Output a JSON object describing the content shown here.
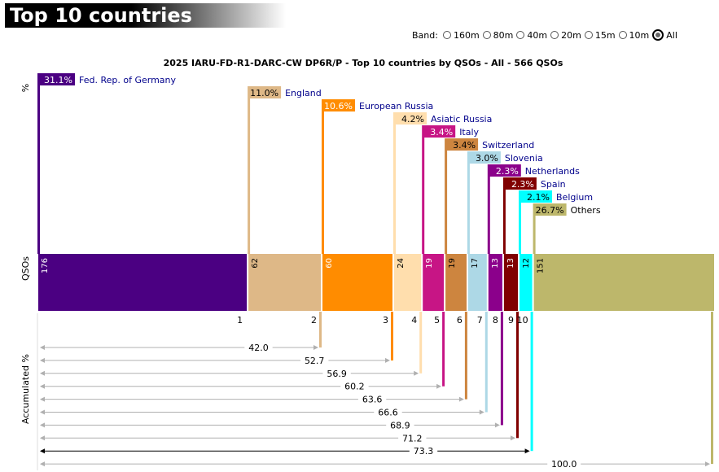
{
  "page": {
    "title": "Top 10 countries"
  },
  "band": {
    "label": "Band:",
    "options": [
      "160m",
      "80m",
      "40m",
      "20m",
      "15m",
      "10m",
      "All"
    ],
    "selected": "All"
  },
  "colors": {
    "others": "#bdb76b",
    "labelText": "#00008b",
    "arrowLight": "#b0b0b0"
  },
  "chart_data": {
    "type": "bar",
    "title": "2025 IARU-FD-R1-DARC-CW DP6R/P - Top 10 countries by QSOs - All - 566 QSOs",
    "total_qsos": 566,
    "axis_labels": {
      "percent": "%",
      "qsos": "QSOs",
      "accumulated": "Accumulated %"
    },
    "categories": [
      "Fed. Rep. of Germany",
      "England",
      "European Russia",
      "Asiatic Russia",
      "Italy",
      "Switzerland",
      "Slovenia",
      "Netherlands",
      "Spain",
      "Belgium",
      "Others"
    ],
    "ranks": [
      "1",
      "2",
      "3",
      "4",
      "5",
      "6",
      "7",
      "8",
      "9",
      "10"
    ],
    "qsos": [
      176,
      62,
      60,
      24,
      19,
      19,
      17,
      13,
      13,
      12,
      151
    ],
    "qso_labels": [
      "176",
      "62",
      "60",
      "24",
      "19",
      "19",
      "17",
      "13",
      "13",
      "12",
      "151"
    ],
    "percent": [
      31.1,
      11.0,
      10.6,
      4.2,
      3.4,
      3.4,
      3.0,
      2.3,
      2.3,
      2.1,
      26.7
    ],
    "percent_labels": [
      "31.1%",
      "11.0%",
      "10.6%",
      "4.2%",
      "3.4%",
      "3.4%",
      "3.0%",
      "2.3%",
      "2.3%",
      "2.1%",
      "26.7%"
    ],
    "accumulated": [
      31.1,
      42.0,
      52.7,
      56.9,
      60.2,
      63.6,
      66.6,
      68.9,
      71.2,
      73.3,
      100.0
    ],
    "accumulated_labels": [
      "42.0",
      "52.7",
      "56.9",
      "60.2",
      "63.6",
      "66.6",
      "68.9",
      "71.2",
      "73.3",
      "100.0"
    ],
    "series_colors": [
      "#4b0082",
      "#deb887",
      "#ff8c00",
      "#ffdead",
      "#c71585",
      "#cd853f",
      "#add8e6",
      "#8b008b",
      "#800000",
      "#00ffff",
      "#bdb76b"
    ],
    "label_dark": [
      true,
      false,
      true,
      false,
      true,
      false,
      false,
      true,
      true,
      false,
      false
    ]
  }
}
